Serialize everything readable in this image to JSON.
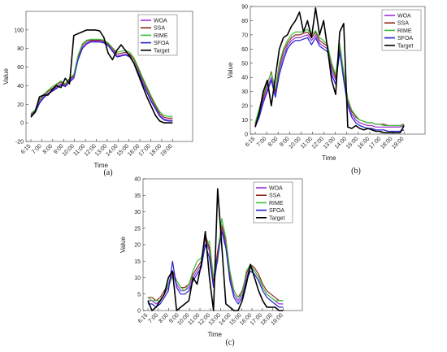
{
  "chart_data": [
    {
      "type": "line",
      "caption": "(a)",
      "xlabel": "Time",
      "ylabel": "Value",
      "ylim": [
        -20,
        120
      ],
      "yticks": [
        -20,
        0,
        20,
        40,
        60,
        80,
        100
      ],
      "xtick_labels": [
        "6:15",
        "7:00",
        "8:00",
        "9:00",
        "10:00",
        "11:00",
        "12:00",
        "13:00",
        "14:00",
        "15:00",
        "16:00",
        "17:00",
        "18:00",
        "19:00"
      ],
      "legend_position": "top-right",
      "series": [
        {
          "name": "WOA",
          "color": "#9b30d9",
          "values": [
            8,
            12,
            22,
            28,
            32,
            35,
            38,
            42,
            40,
            45,
            50,
            70,
            82,
            86,
            88,
            88,
            88,
            87,
            84,
            78,
            72,
            73,
            74,
            72,
            65,
            55,
            44,
            34,
            24,
            16,
            8,
            4,
            3,
            3
          ]
        },
        {
          "name": "SSA",
          "color": "#8b2a1a",
          "values": [
            9,
            13,
            24,
            30,
            34,
            37,
            41,
            44,
            41,
            47,
            51,
            72,
            84,
            88,
            89,
            89,
            89,
            88,
            85,
            80,
            74,
            75,
            76,
            74,
            68,
            58,
            47,
            37,
            27,
            18,
            10,
            6,
            5,
            5
          ]
        },
        {
          "name": "RIME",
          "color": "#3cbf3c",
          "values": [
            10,
            14,
            25,
            31,
            35,
            39,
            42,
            45,
            42,
            48,
            52,
            73,
            85,
            89,
            90,
            90,
            90,
            89,
            86,
            81,
            76,
            77,
            78,
            76,
            70,
            60,
            49,
            39,
            29,
            20,
            12,
            8,
            7,
            7
          ]
        },
        {
          "name": "SFOA",
          "color": "#2020d0",
          "values": [
            7,
            11,
            21,
            27,
            31,
            34,
            37,
            41,
            39,
            44,
            48,
            68,
            80,
            85,
            87,
            87,
            87,
            86,
            83,
            77,
            71,
            72,
            73,
            71,
            64,
            54,
            43,
            33,
            23,
            15,
            7,
            3,
            2,
            2
          ]
        },
        {
          "name": "Target",
          "color": "#000000",
          "values": [
            6,
            12,
            28,
            30,
            30,
            36,
            40,
            38,
            48,
            42,
            94,
            96,
            98,
            100,
            100,
            100,
            99,
            92,
            75,
            68,
            78,
            84,
            78,
            72,
            64,
            52,
            40,
            28,
            18,
            8,
            2,
            0,
            0,
            0
          ]
        }
      ]
    },
    {
      "type": "line",
      "caption": "(b)",
      "xlabel": "Time",
      "ylabel": "Value",
      "ylim": [
        0,
        90
      ],
      "yticks": [
        0,
        10,
        20,
        30,
        40,
        50,
        60,
        70,
        80,
        90
      ],
      "xtick_labels": [
        "6:15",
        "7:00",
        "8:00",
        "9:00",
        "10:00",
        "11:00",
        "12:00",
        "13:00",
        "14:00",
        "15:00",
        "16:00",
        "17:00",
        "18:00",
        "19:00"
      ],
      "legend_position": "top-right",
      "series": [
        {
          "name": "WOA",
          "color": "#9b30d9",
          "values": [
            6,
            14,
            24,
            32,
            40,
            28,
            45,
            55,
            62,
            66,
            68,
            68,
            69,
            70,
            66,
            70,
            64,
            62,
            60,
            45,
            38,
            60,
            40,
            22,
            14,
            10,
            8,
            7,
            6,
            6,
            5,
            5,
            5,
            5,
            5,
            5,
            5,
            6
          ]
        },
        {
          "name": "SSA",
          "color": "#8b2a1a",
          "values": [
            7,
            16,
            26,
            35,
            44,
            30,
            48,
            58,
            64,
            68,
            70,
            70,
            71,
            72,
            68,
            72,
            66,
            64,
            62,
            48,
            40,
            62,
            42,
            24,
            16,
            12,
            10,
            9,
            8,
            8,
            7,
            7,
            7,
            6,
            6,
            6,
            6,
            7
          ]
        },
        {
          "name": "RIME",
          "color": "#3cbf3c",
          "values": [
            8,
            18,
            28,
            36,
            43,
            32,
            50,
            60,
            66,
            70,
            72,
            72,
            72,
            74,
            70,
            73,
            68,
            66,
            63,
            50,
            42,
            64,
            44,
            25,
            17,
            13,
            10,
            9,
            8,
            8,
            7,
            7,
            6,
            6,
            6,
            6,
            6,
            6
          ]
        },
        {
          "name": "SFOA",
          "color": "#2020d0",
          "values": [
            5,
            12,
            22,
            30,
            38,
            26,
            42,
            52,
            60,
            64,
            66,
            66,
            67,
            68,
            63,
            68,
            62,
            60,
            58,
            42,
            35,
            58,
            38,
            20,
            12,
            8,
            6,
            5,
            4,
            4,
            3,
            3,
            3,
            2,
            2,
            2,
            2,
            3
          ]
        },
        {
          "name": "Target",
          "color": "#000000",
          "values": [
            5,
            15,
            30,
            38,
            20,
            40,
            60,
            68,
            70,
            76,
            80,
            86,
            72,
            80,
            68,
            89,
            70,
            80,
            60,
            38,
            28,
            72,
            78,
            5,
            4,
            6,
            4,
            3,
            4,
            3,
            2,
            2,
            1,
            1,
            1,
            1,
            1,
            6
          ]
        }
      ]
    },
    {
      "type": "line",
      "caption": "(c)",
      "xlabel": "Time",
      "ylabel": "Value",
      "ylim": [
        0,
        40
      ],
      "yticks": [
        0,
        5,
        10,
        15,
        20,
        25,
        30,
        35,
        40
      ],
      "xtick_labels": [
        "6:15",
        "7:00",
        "8:00",
        "9:00",
        "10:00",
        "11:00",
        "12:00",
        "13:00",
        "14:00",
        "15:00",
        "16:00",
        "17:00",
        "18:00",
        "19:00"
      ],
      "legend_position": "top-right",
      "series": [
        {
          "name": "WOA",
          "color": "#9b30d9",
          "values": [
            3,
            3,
            2,
            3,
            5,
            7,
            11,
            8,
            6,
            6,
            7,
            10,
            12,
            14,
            22,
            18,
            8,
            17,
            25,
            20,
            10,
            5,
            3,
            5,
            10,
            13,
            12,
            10,
            7,
            5,
            4,
            3,
            2,
            2
          ]
        },
        {
          "name": "SSA",
          "color": "#8b2a1a",
          "values": [
            4,
            4,
            3,
            4,
            6,
            8,
            12,
            9,
            7,
            7,
            8,
            11,
            13,
            15,
            23,
            19,
            9,
            18,
            26,
            21,
            11,
            6,
            4,
            6,
            11,
            14,
            13,
            11,
            8,
            6,
            5,
            4,
            3,
            3
          ]
        },
        {
          "name": "RIME",
          "color": "#3cbf3c",
          "values": [
            4,
            3,
            3,
            3,
            5,
            8,
            10,
            9,
            7,
            6,
            8,
            12,
            15,
            16,
            20,
            21,
            10,
            15,
            28,
            22,
            12,
            6,
            4,
            5,
            12,
            14,
            12,
            10,
            7,
            5,
            4,
            3,
            3,
            3
          ]
        },
        {
          "name": "SFOA",
          "color": "#2020d0",
          "values": [
            2,
            2,
            1,
            2,
            4,
            6,
            15,
            7,
            5,
            5,
            6,
            9,
            11,
            13,
            20,
            16,
            7,
            16,
            24,
            19,
            9,
            4,
            2,
            4,
            9,
            12,
            11,
            9,
            6,
            4,
            3,
            2,
            1,
            1
          ]
        },
        {
          "name": "Target",
          "color": "#000000",
          "values": [
            3,
            0,
            1,
            3,
            5,
            10,
            12,
            0,
            1,
            2,
            3,
            10,
            8,
            14,
            24,
            10,
            0,
            37,
            20,
            2,
            1,
            0,
            0,
            3,
            8,
            14,
            10,
            6,
            3,
            1,
            1,
            1,
            0,
            0
          ]
        }
      ]
    }
  ]
}
